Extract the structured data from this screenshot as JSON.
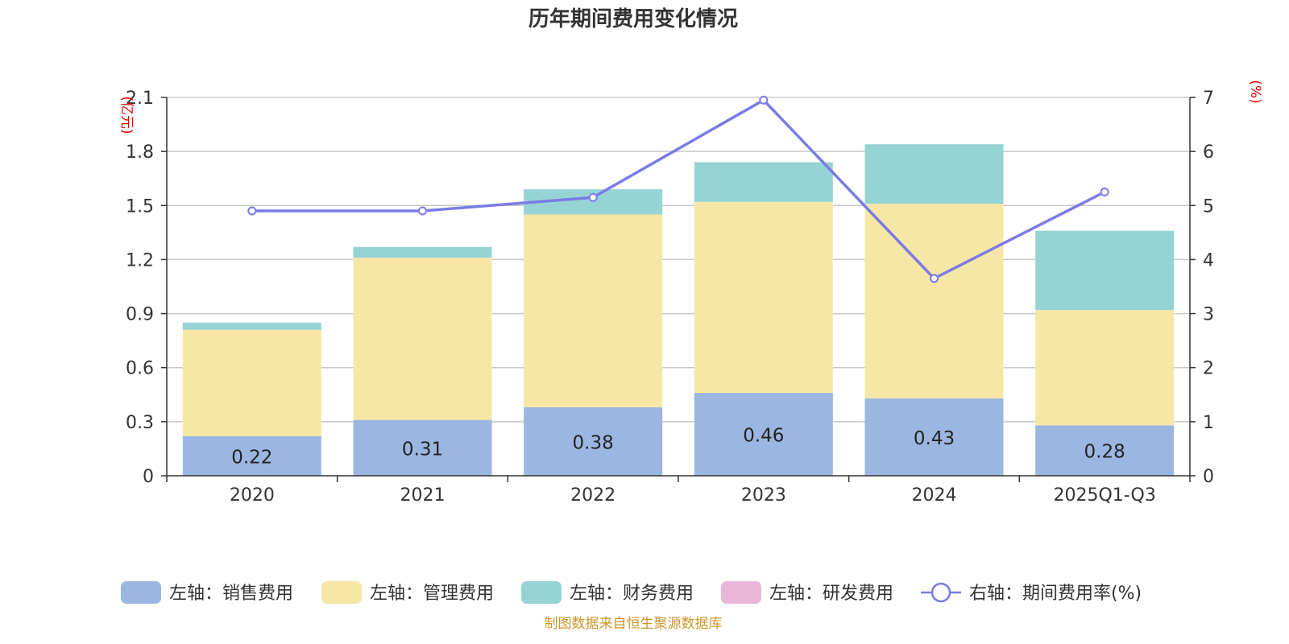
{
  "chart_data": {
    "type": "bar",
    "title": "历年期间费用变化情况",
    "categories": [
      "2020",
      "2021",
      "2022",
      "2023",
      "2024",
      "2025Q1-Q3"
    ],
    "y_left": {
      "unit": "(亿元)",
      "ylim": [
        0,
        2.1
      ],
      "ticks": [
        "0",
        "0.3",
        "0.6",
        "0.9",
        "1.2",
        "1.5",
        "1.8",
        "2.1"
      ]
    },
    "y_right": {
      "unit": "(%)",
      "ylim": [
        0,
        7
      ],
      "ticks": [
        "0",
        "1",
        "2",
        "3",
        "4",
        "5",
        "6",
        "7"
      ]
    },
    "series": [
      {
        "name": "左轴：销售费用",
        "axis": "left",
        "kind": "bar",
        "color": "#9bb7e1",
        "values": [
          0.22,
          0.31,
          0.38,
          0.46,
          0.43,
          0.28
        ],
        "labels": [
          "0.22",
          "0.31",
          "0.38",
          "0.46",
          "0.43",
          "0.28"
        ]
      },
      {
        "name": "左轴：管理费用",
        "axis": "left",
        "kind": "bar",
        "color": "#f7e7a6",
        "values": [
          0.59,
          0.9,
          1.07,
          1.06,
          1.08,
          0.64
        ]
      },
      {
        "name": "左轴：财务费用",
        "axis": "left",
        "kind": "bar",
        "color": "#96d3d4",
        "values": [
          0.04,
          0.06,
          0.14,
          0.22,
          0.33,
          0.44
        ]
      },
      {
        "name": "左轴：研发费用",
        "axis": "left",
        "kind": "bar",
        "color": "#e8b7d8",
        "values": [
          0,
          0,
          0,
          0,
          0,
          0
        ]
      },
      {
        "name": "右轴：期间费用率(%)",
        "axis": "right",
        "kind": "line",
        "color": "#7b7be6",
        "values": [
          4.9,
          4.9,
          5.15,
          6.95,
          3.65,
          5.25
        ]
      }
    ],
    "grid": true,
    "legend": "bottom-center"
  },
  "source": "制图数据来自恒生聚源数据库"
}
